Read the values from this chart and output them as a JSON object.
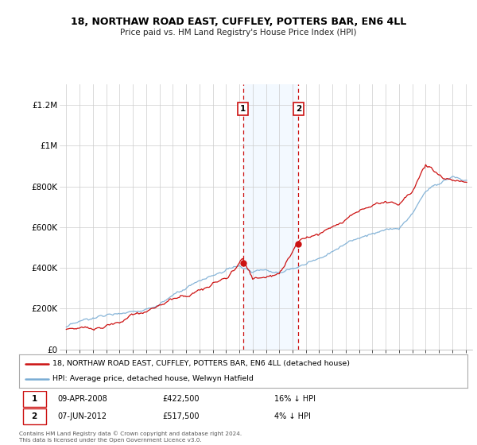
{
  "title": "18, NORTHAW ROAD EAST, CUFFLEY, POTTERS BAR, EN6 4LL",
  "subtitle": "Price paid vs. HM Land Registry's House Price Index (HPI)",
  "legend_line1": "18, NORTHAW ROAD EAST, CUFFLEY, POTTERS BAR, EN6 4LL (detached house)",
  "legend_line2": "HPI: Average price, detached house, Welwyn Hatfield",
  "transaction1_date": "09-APR-2008",
  "transaction1_price": "£422,500",
  "transaction1_hpi": "16% ↓ HPI",
  "transaction2_date": "07-JUN-2012",
  "transaction2_price": "£517,500",
  "transaction2_hpi": "4% ↓ HPI",
  "footer": "Contains HM Land Registry data © Crown copyright and database right 2024.\nThis data is licensed under the Open Government Licence v3.0.",
  "hpi_color": "#7aadd4",
  "price_color": "#cc1111",
  "shade_color": "#ddeeff",
  "transaction1_x": 2008.27,
  "transaction2_x": 2012.44,
  "transaction1_y": 422500,
  "transaction2_y": 517500,
  "ylim_min": 0,
  "ylim_max": 1300000,
  "xlim_min": 1994.5,
  "xlim_max": 2025.5,
  "yticks": [
    0,
    200000,
    400000,
    600000,
    800000,
    1000000,
    1200000
  ],
  "ytick_labels": [
    "£0",
    "£200K",
    "£400K",
    "£600K",
    "£800K",
    "£1M",
    "£1.2M"
  ],
  "xticks": [
    1995,
    1996,
    1997,
    1998,
    1999,
    2000,
    2001,
    2002,
    2003,
    2004,
    2005,
    2006,
    2007,
    2008,
    2009,
    2010,
    2011,
    2012,
    2013,
    2014,
    2015,
    2016,
    2017,
    2018,
    2019,
    2020,
    2021,
    2022,
    2023,
    2024,
    2025
  ]
}
